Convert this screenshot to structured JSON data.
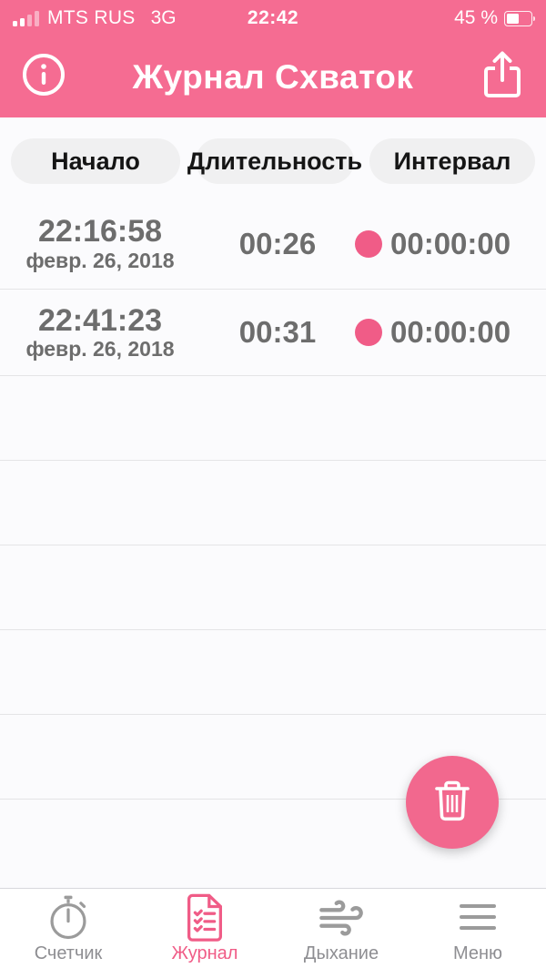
{
  "status_bar": {
    "carrier": "MTS RUS",
    "network": "3G",
    "time": "22:42",
    "battery_text": "45 %",
    "battery_percent": 45
  },
  "header": {
    "title": "Журнал Схваток"
  },
  "columns": {
    "start": "Начало",
    "duration": "Длительность",
    "interval": "Интервал"
  },
  "table": {
    "rows": [
      {
        "start_time": "22:16:58",
        "start_date": "февр. 26, 2018",
        "duration": "00:26",
        "interval": "00:00:00"
      },
      {
        "start_time": "22:41:23",
        "start_date": "февр. 26, 2018",
        "duration": "00:31",
        "interval": "00:00:00"
      }
    ],
    "empty_rows": 5
  },
  "tab_bar": {
    "items": [
      {
        "label": "Счетчик",
        "icon": "stopwatch-icon",
        "active": false
      },
      {
        "label": "Журнал",
        "icon": "journal-icon",
        "active": true
      },
      {
        "label": "Дыхание",
        "icon": "breathing-icon",
        "active": false
      },
      {
        "label": "Меню",
        "icon": "menu-icon",
        "active": false
      }
    ]
  },
  "colors": {
    "header_pink": "#F56C92",
    "accent_pink": "#F05C87",
    "row_text_gray": "#6D6D6D",
    "inactive_gray": "#9B9B9B",
    "pill_background": "#F0F0F1"
  }
}
